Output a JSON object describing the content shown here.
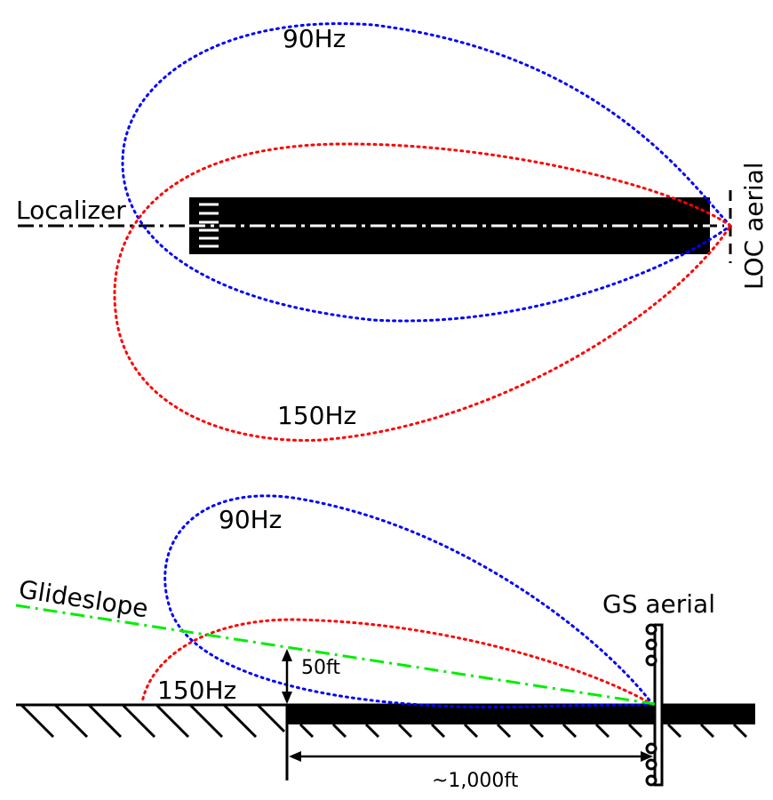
{
  "localizer": {
    "label_90": "90Hz",
    "label_150": "150Hz",
    "course_label": "Localizer",
    "aerial_label": "LOC aerial"
  },
  "glideslope": {
    "label_90": "90Hz",
    "label_150": "150Hz",
    "path_label": "Glideslope",
    "aerial_label": "GS aerial",
    "height_label": "50ft",
    "distance_label": "~1,000ft"
  },
  "colors": {
    "lobe_90": "#0000ff",
    "lobe_150": "#ff0000",
    "glidepath": "#00ee00",
    "runway": "#000000"
  }
}
